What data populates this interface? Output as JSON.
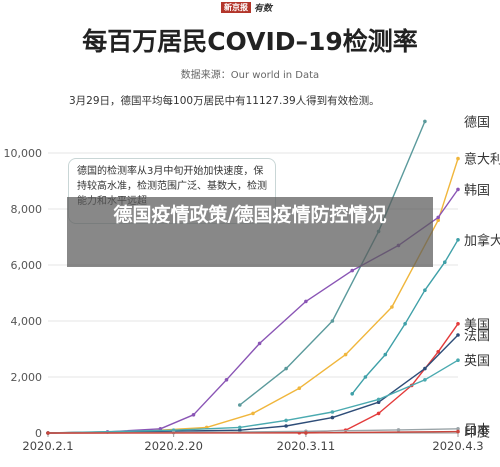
{
  "header": {
    "badge": "新京报",
    "badge_extra": "有数",
    "title": "每百万居民COVID–19检测率",
    "source": "数据来源：Our world in Data"
  },
  "annotation": "3月29日，德国平均每100万居民中有11127.39人得到有效检测。",
  "callout": "德国的检测率从3月中旬开始加快速度，保持较高水准，检测范围广泛、基数大，检测能力和水平远超",
  "overlay": "德国疫情政策/德国疫情防控情况",
  "chart_data": {
    "type": "line",
    "title": "每百万居民COVID–19检测率",
    "xlabel": "",
    "ylabel": "",
    "ylim": [
      0,
      12000
    ],
    "y_ticks": [
      "0",
      "2,000",
      "4,000",
      "6,000",
      "8,000",
      "10,000"
    ],
    "x_ticks": [
      "2020.2.1",
      "2020.2.20",
      "2020.3.11",
      "2020.4.3"
    ],
    "grid": true,
    "series": [
      {
        "name": "德国",
        "color": "#5b9a9c",
        "x": [
          "2020-03-01",
          "2020-03-08",
          "2020-03-15",
          "2020-03-22",
          "2020-03-29"
        ],
        "values": [
          1000,
          2300,
          4000,
          7200,
          11127
        ]
      },
      {
        "name": "意大利",
        "color": "#f0b63c",
        "x": [
          "2020-02-01",
          "2020-02-15",
          "2020-02-25",
          "2020-03-03",
          "2020-03-10",
          "2020-03-17",
          "2020-03-24",
          "2020-03-31",
          "2020-04-03"
        ],
        "values": [
          0,
          60,
          200,
          700,
          1600,
          2800,
          4500,
          7600,
          9800
        ]
      },
      {
        "name": "韩国",
        "color": "#8a55b5",
        "x": [
          "2020-02-01",
          "2020-02-10",
          "2020-02-18",
          "2020-02-23",
          "2020-02-28",
          "2020-03-04",
          "2020-03-11",
          "2020-03-18",
          "2020-03-25",
          "2020-03-31",
          "2020-04-03"
        ],
        "values": [
          0,
          40,
          150,
          650,
          1900,
          3200,
          4700,
          5800,
          6700,
          7700,
          8700
        ]
      },
      {
        "name": "加拿大",
        "color": "#3fa0a8",
        "x": [
          "2020-03-18",
          "2020-03-20",
          "2020-03-23",
          "2020-03-26",
          "2020-03-29",
          "2020-04-01",
          "2020-04-03"
        ],
        "values": [
          1400,
          2000,
          2800,
          3900,
          5100,
          6100,
          6900
        ]
      },
      {
        "name": "美国",
        "color": "#e33b3b",
        "x": [
          "2020-02-01",
          "2020-03-10",
          "2020-03-17",
          "2020-03-22",
          "2020-03-27",
          "2020-03-31",
          "2020-04-03"
        ],
        "values": [
          0,
          10,
          100,
          700,
          1700,
          2900,
          3900
        ]
      },
      {
        "name": "法国",
        "color": "#2e4d78",
        "x": [
          "2020-02-01",
          "2020-03-01",
          "2020-03-08",
          "2020-03-15",
          "2020-03-22",
          "2020-03-29",
          "2020-04-03"
        ],
        "values": [
          0,
          100,
          250,
          550,
          1100,
          2300,
          3500
        ]
      },
      {
        "name": "英国",
        "color": "#4aaab0",
        "x": [
          "2020-02-01",
          "2020-02-20",
          "2020-03-01",
          "2020-03-08",
          "2020-03-15",
          "2020-03-22",
          "2020-03-29",
          "2020-04-03"
        ],
        "values": [
          0,
          100,
          200,
          450,
          750,
          1200,
          1900,
          2600
        ]
      },
      {
        "name": "日本",
        "color": "#9aa4a8",
        "x": [
          "2020-02-01",
          "2020-02-20",
          "2020-03-11",
          "2020-03-25",
          "2020-04-03"
        ],
        "values": [
          0,
          15,
          60,
          110,
          150
        ]
      },
      {
        "name": "印度",
        "color": "#c9463d",
        "x": [
          "2020-02-01",
          "2020-03-11",
          "2020-04-03"
        ],
        "values": [
          0,
          5,
          50
        ]
      }
    ]
  }
}
